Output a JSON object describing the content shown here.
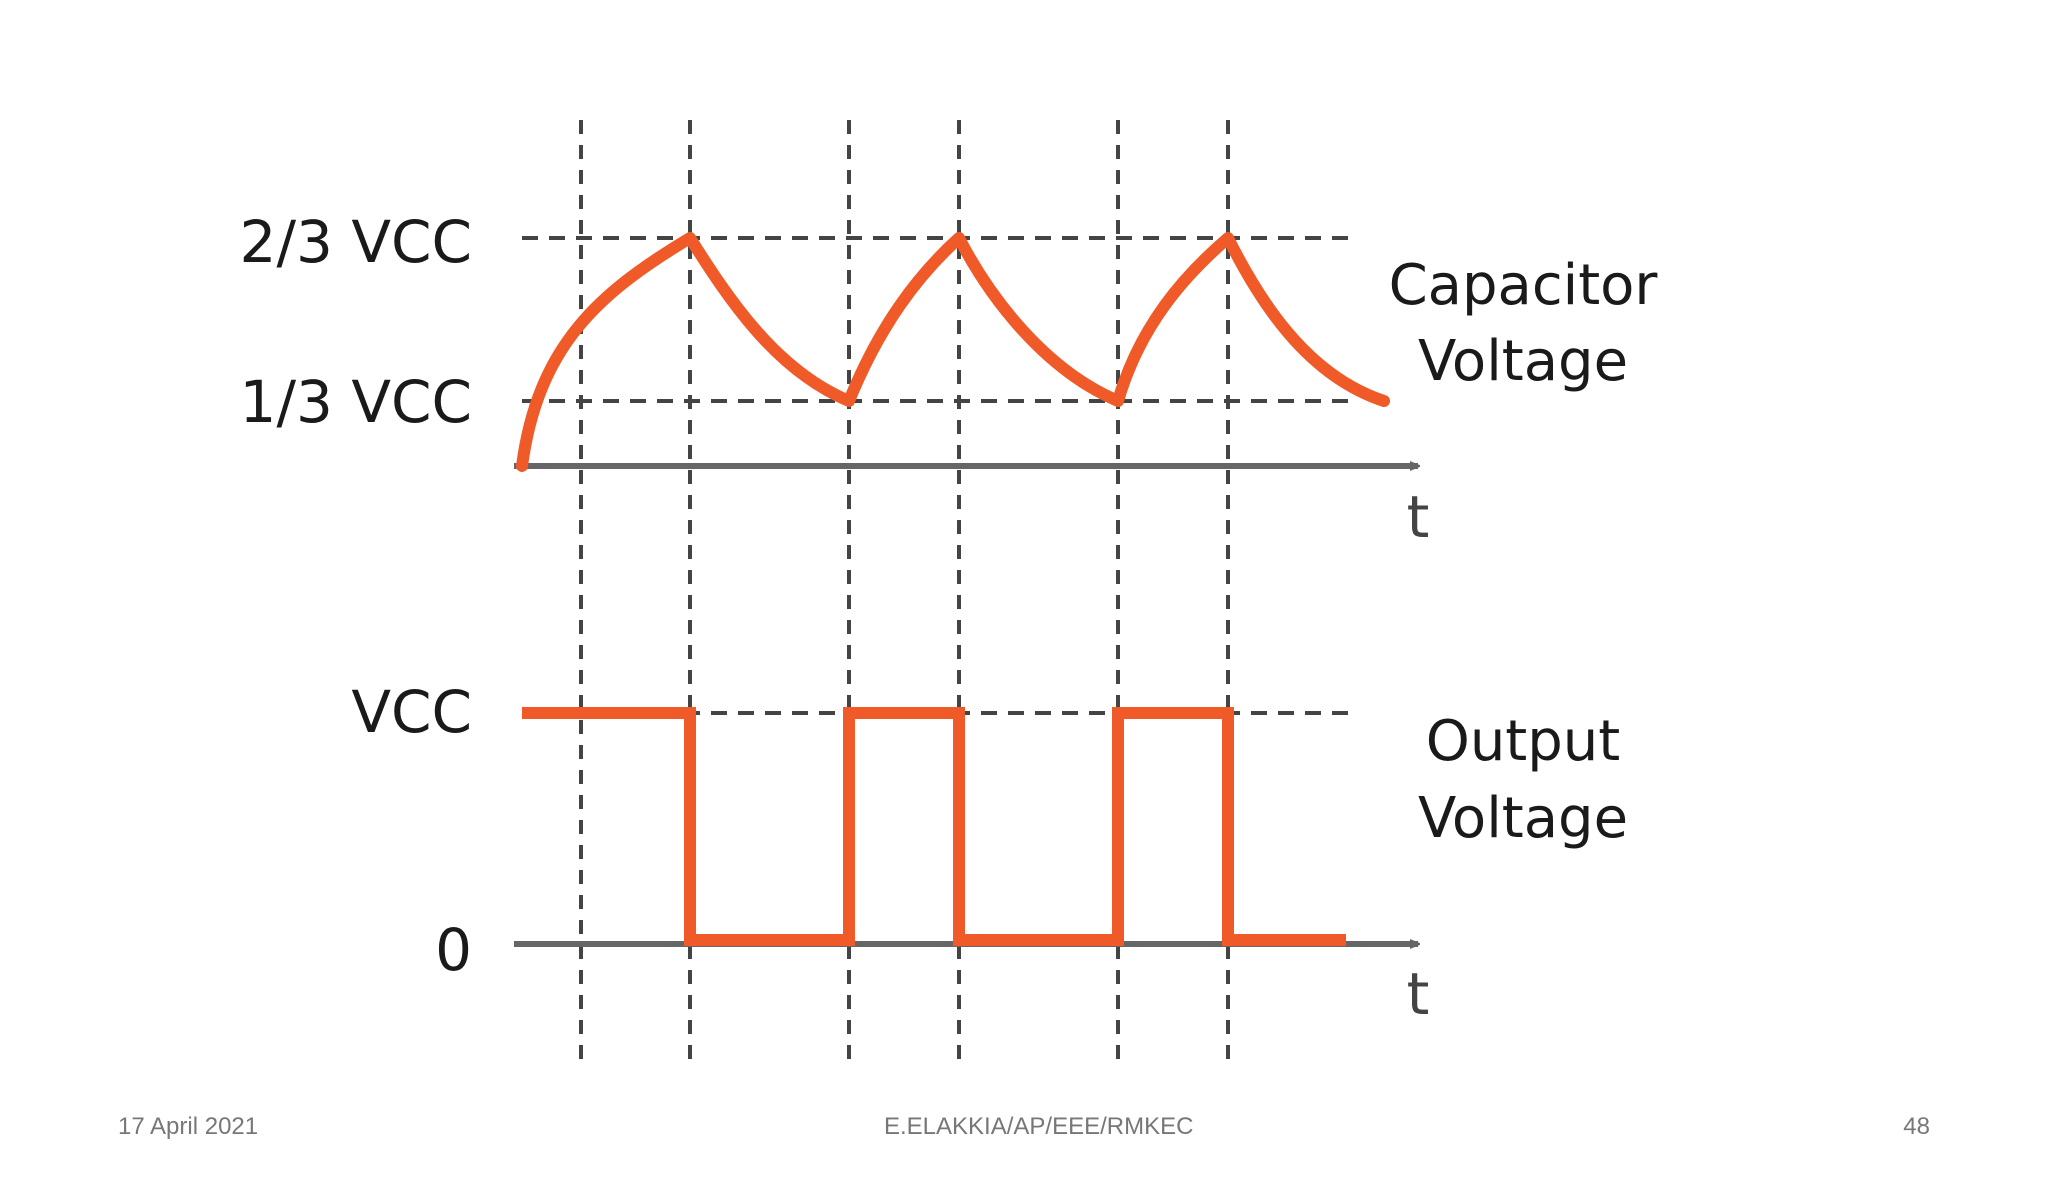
{
  "diagram": {
    "capacitor_panel": {
      "level_labels": {
        "upper": "2/3 VCC",
        "lower": "1/3 VCC"
      },
      "waveform_label": [
        "Capacitor",
        "Voltage"
      ],
      "axis_label": "t"
    },
    "output_panel": {
      "level_labels": {
        "high": "VCC",
        "low": "0"
      },
      "waveform_label": [
        "Output",
        "Voltage"
      ],
      "axis_label": "t"
    },
    "colors": {
      "waveform": "#f05a28",
      "axis": "#666666",
      "dashed_guides": "#444444",
      "text": "#1a1a1a"
    }
  },
  "footer": {
    "date": "17 April 2021",
    "author": "E.ELAKKIA/AP/EEE/RMKEC",
    "page_number": "48"
  }
}
